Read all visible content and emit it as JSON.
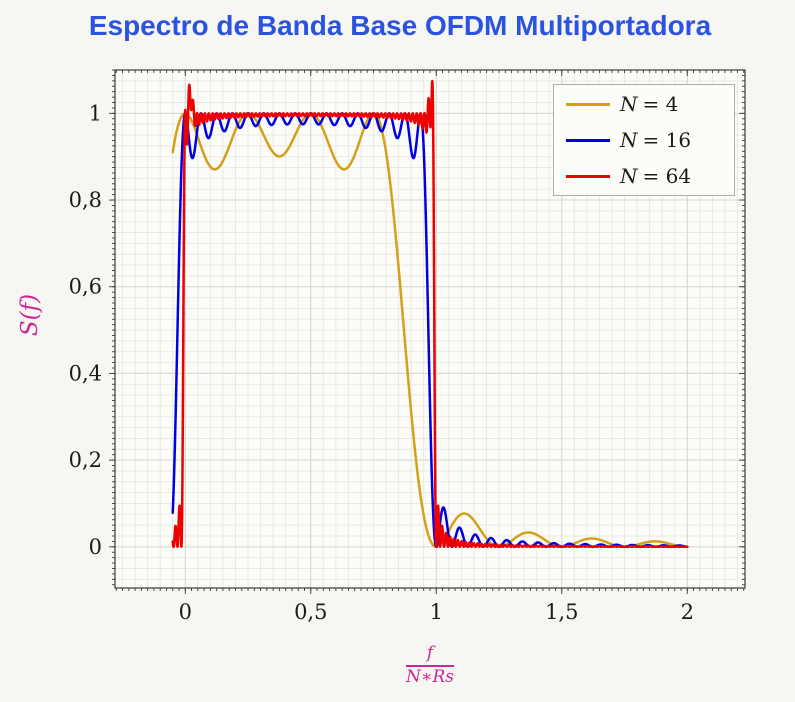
{
  "title": {
    "text": "Espectro de Banda Base OFDM Multiportadora",
    "color": "#2b53e0"
  },
  "colors": {
    "axis_labels": "#cc2699",
    "tick_labels": "#1b1b1b",
    "plot_background": "#fcfcf9",
    "grid_minor": "#e9e9e4",
    "grid_major": "#d7d7d1",
    "frame": "#3a3a3a"
  },
  "chart_data": {
    "type": "line",
    "title": "Espectro de Banda Base OFDM Multiportadora",
    "ylabel": "S(f)",
    "xlabel": {
      "numerator": "f",
      "denominator": "N∗Rs"
    },
    "xlim": [
      -0.28,
      2.23
    ],
    "ylim": [
      -0.095,
      1.1
    ],
    "grid": "both",
    "axis": {
      "x_major_ticks": [
        {
          "value": 0,
          "label": "0"
        },
        {
          "value": 0.5,
          "label": "0,5"
        },
        {
          "value": 1,
          "label": "1"
        },
        {
          "value": 1.5,
          "label": "1,5"
        },
        {
          "value": 2,
          "label": "2"
        }
      ],
      "y_major_ticks": [
        {
          "value": 0,
          "label": "0"
        },
        {
          "value": 0.2,
          "label": "0,2"
        },
        {
          "value": 0.4,
          "label": "0,4"
        },
        {
          "value": 0.6,
          "label": "0,6"
        },
        {
          "value": 0.8,
          "label": "0,8"
        },
        {
          "value": 1,
          "label": "1"
        }
      ],
      "x_minor_grid_step": 0.05,
      "y_minor_grid_step": 0.025,
      "x_minor_tick_step": 0.025,
      "y_minor_tick_step": 0.0125
    },
    "legend": {
      "position": "top-right",
      "entries": [
        {
          "symbol": "N",
          "value": "= 4",
          "color": "#d4a017"
        },
        {
          "symbol": "N",
          "value": "= 16",
          "color": "#0000e6"
        },
        {
          "symbol": "N",
          "value": "= 64",
          "color": "#ee0000"
        }
      ]
    },
    "series": [
      {
        "name": "N = 4",
        "N": 4,
        "color": "#d4a017",
        "x_range": [
          -0.05,
          2
        ],
        "samples": 1200,
        "model": "S(x) = sum_{k=0}^{N-1} sinc^2(N*x - k)",
        "passband": [
          0,
          0.75
        ],
        "passband_peak": 1.0,
        "passband_ripple_min": 0.87,
        "first_sidelobe": {
          "x": 1.11,
          "y": 0.075
        }
      },
      {
        "name": "N = 16",
        "N": 16,
        "color": "#0000e6",
        "x_range": [
          -0.05,
          2
        ],
        "samples": 1800,
        "model": "S(x) = sum_{k=0}^{N-1} sinc^2(N*x - k)",
        "passband": [
          0,
          0.9375
        ],
        "passband_peak": 1.0,
        "passband_ripple_min": 0.93,
        "first_sidelobe": {
          "x": 1.08,
          "y": 0.06
        }
      },
      {
        "name": "N = 64",
        "N": 64,
        "color": "#ee0000",
        "x_range": [
          -0.05,
          2
        ],
        "samples": 2600,
        "model": "S(x) = sum_{k=0}^{N-1} sinc^2(N*x - k)",
        "passband": [
          0,
          0.984
        ],
        "passband_peak": 1.05,
        "passband_ripple_min": 0.95,
        "edge_overshoots": [
          {
            "center": 0.981,
            "width": 0.013,
            "amp": 0.08
          },
          {
            "center": 0.019,
            "width": 0.013,
            "amp": 0.07
          }
        ]
      }
    ]
  }
}
